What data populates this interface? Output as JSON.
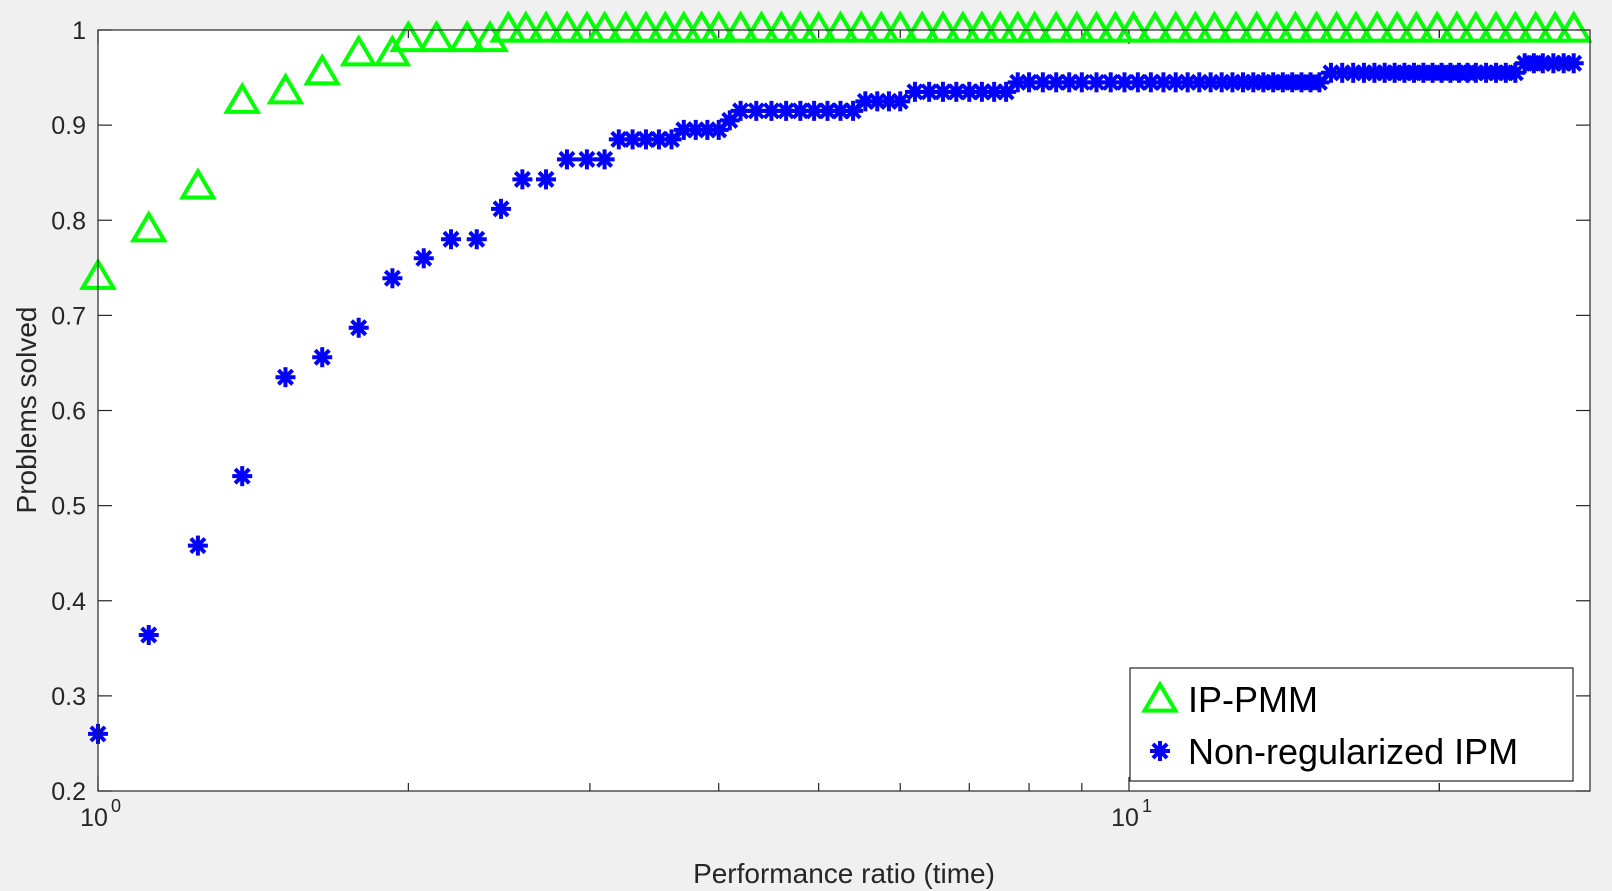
{
  "chart_data": {
    "type": "scatter",
    "title": "",
    "xlabel": "Performance ratio (time)",
    "ylabel": "Problems solved",
    "xscale": "log",
    "xlim": [
      1,
      28
    ],
    "ylim": [
      0.2,
      1
    ],
    "grid": false,
    "legend_position": "bottom-right",
    "x_ticks": [
      {
        "value": 1,
        "base": "10",
        "exp": "0"
      },
      {
        "value": 10,
        "base": "10",
        "exp": "1"
      }
    ],
    "y_ticks": [
      "0.2",
      "0.3",
      "0.4",
      "0.5",
      "0.6",
      "0.7",
      "0.8",
      "0.9",
      "1"
    ],
    "colors": {
      "IP-PMM": "#00ff00",
      "Non-regularized IPM": "#0000ff"
    },
    "series": [
      {
        "name": "IP-PMM",
        "marker": "triangle",
        "x": [
          1.0,
          1.12,
          1.25,
          1.38,
          1.52,
          1.65,
          1.79,
          1.93,
          2.0,
          2.13,
          2.28,
          2.4,
          2.5,
          2.6,
          2.72,
          2.85,
          2.98,
          3.1,
          3.25,
          3.4,
          3.55,
          3.7,
          3.85,
          4.0,
          4.2,
          4.4,
          4.6,
          4.8,
          5.0,
          5.25,
          5.5,
          5.75,
          6.0,
          6.3,
          6.6,
          6.9,
          7.2,
          7.5,
          7.8,
          8.1,
          8.5,
          8.9,
          9.3,
          9.7,
          10.1,
          10.6,
          11.1,
          11.6,
          12.1,
          12.7,
          13.3,
          13.9,
          14.5,
          15.2,
          15.9,
          16.6,
          17.4,
          18.2,
          19.0,
          19.9,
          20.8,
          21.7,
          22.7,
          23.7,
          24.8,
          25.9,
          27.0
        ],
        "y": [
          0.74,
          0.79,
          0.835,
          0.925,
          0.935,
          0.955,
          0.975,
          0.975,
          0.99,
          0.99,
          0.99,
          0.99,
          1,
          1,
          1,
          1,
          1,
          1,
          1,
          1,
          1,
          1,
          1,
          1,
          1,
          1,
          1,
          1,
          1,
          1,
          1,
          1,
          1,
          1,
          1,
          1,
          1,
          1,
          1,
          1,
          1,
          1,
          1,
          1,
          1,
          1,
          1,
          1,
          1,
          1,
          1,
          1,
          1,
          1,
          1,
          1,
          1,
          1,
          1,
          1,
          1,
          1,
          1,
          1,
          1,
          1,
          1
        ]
      },
      {
        "name": "Non-regularized IPM",
        "marker": "asterisk",
        "x": [
          1.0,
          1.12,
          1.25,
          1.38,
          1.52,
          1.65,
          1.79,
          1.93,
          2.07,
          2.2,
          2.33,
          2.46,
          2.58,
          2.72,
          2.85,
          2.98,
          3.1,
          3.2,
          3.3,
          3.4,
          3.5,
          3.6,
          3.7,
          3.8,
          3.9,
          4.0,
          4.1,
          4.2,
          4.35,
          4.5,
          4.65,
          4.8,
          4.95,
          5.1,
          5.25,
          5.4,
          5.55,
          5.7,
          5.85,
          6.0,
          6.2,
          6.4,
          6.6,
          6.8,
          7.0,
          7.2,
          7.4,
          7.6,
          7.8,
          8.0,
          8.25,
          8.5,
          8.75,
          9.0,
          9.3,
          9.6,
          9.9,
          10.2,
          10.5,
          10.8,
          11.1,
          11.4,
          11.7,
          12.0,
          12.3,
          12.6,
          12.9,
          13.2,
          13.5,
          13.8,
          14.1,
          14.4,
          14.7,
          15.0,
          15.3,
          15.7,
          16.1,
          16.5,
          16.9,
          17.3,
          17.7,
          18.1,
          18.5,
          18.9,
          19.3,
          19.7,
          20.1,
          20.5,
          20.9,
          21.3,
          21.7,
          22.2,
          22.7,
          23.2,
          23.7,
          24.2,
          24.7,
          25.2,
          25.8,
          26.4,
          27.0
        ],
        "y": [
          0.26,
          0.364,
          0.458,
          0.531,
          0.635,
          0.656,
          0.687,
          0.739,
          0.76,
          0.78,
          0.78,
          0.812,
          0.843,
          0.843,
          0.864,
          0.864,
          0.864,
          0.885,
          0.885,
          0.885,
          0.885,
          0.885,
          0.895,
          0.895,
          0.895,
          0.895,
          0.905,
          0.915,
          0.915,
          0.915,
          0.915,
          0.915,
          0.915,
          0.915,
          0.915,
          0.915,
          0.925,
          0.925,
          0.925,
          0.925,
          0.935,
          0.935,
          0.935,
          0.935,
          0.935,
          0.935,
          0.935,
          0.935,
          0.945,
          0.945,
          0.945,
          0.945,
          0.945,
          0.945,
          0.945,
          0.945,
          0.945,
          0.945,
          0.945,
          0.945,
          0.945,
          0.945,
          0.945,
          0.945,
          0.945,
          0.945,
          0.945,
          0.945,
          0.945,
          0.945,
          0.945,
          0.945,
          0.945,
          0.945,
          0.945,
          0.955,
          0.955,
          0.955,
          0.955,
          0.955,
          0.955,
          0.955,
          0.955,
          0.955,
          0.955,
          0.955,
          0.955,
          0.955,
          0.955,
          0.955,
          0.955,
          0.955,
          0.955,
          0.955,
          0.955,
          0.965,
          0.965,
          0.965,
          0.965,
          0.965,
          0.965
        ]
      }
    ]
  }
}
